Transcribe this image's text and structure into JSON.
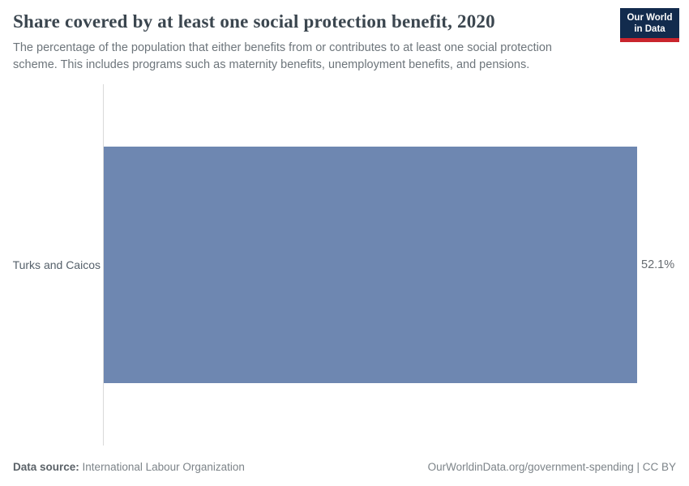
{
  "header": {
    "title": "Share covered by at least one social protection benefit, 2020",
    "subtitle": "The percentage of the population that either benefits from or contributes to at least one social protection\nscheme. This includes programs such as maternity benefits, unemployment benefits, and pensions.",
    "logo": {
      "line1": "Our World",
      "line2": "in Data"
    }
  },
  "chart_data": {
    "type": "bar",
    "orientation": "horizontal",
    "title": "Share covered by at least one social protection benefit, 2020",
    "categories": [
      "Turks and Caicos"
    ],
    "values": [
      52.1
    ],
    "value_labels": [
      "52.1%"
    ],
    "xlim": [
      0,
      52.1
    ],
    "grid": false,
    "x_axis_ticks_visible": false,
    "bar_color": "#6E87B1",
    "axis_line_color": "#d9d9d9"
  },
  "footer": {
    "source_label": "Data source:",
    "source_value": "International Labour Organization",
    "credit": "OurWorldinData.org/government-spending | CC BY"
  },
  "colors": {
    "bar": "#6E87B1",
    "logo_navy": "#122B4D",
    "logo_red": "#C9252D",
    "title_text": "#3b464f",
    "subtitle_text": "#6d757b",
    "axis_line": "#d9d9d9"
  }
}
